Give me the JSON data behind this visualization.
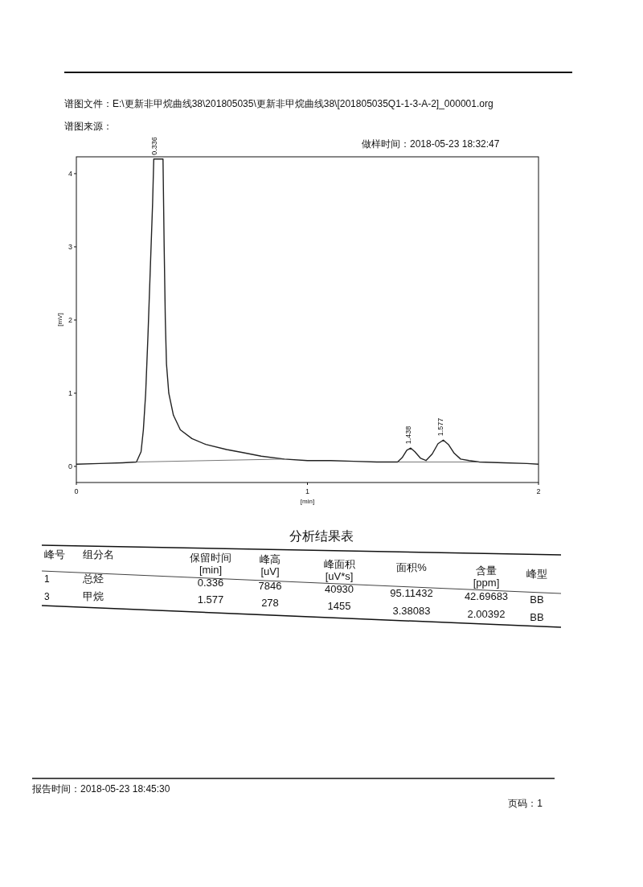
{
  "chart_data": {
    "type": "line",
    "xlabel": "[min]",
    "ylabel": "[mV]",
    "xlim": [
      0,
      2
    ],
    "ylim": [
      -0.22,
      4.23
    ],
    "xticks": [
      0,
      1,
      2
    ],
    "yticks": [
      0,
      1,
      2,
      3,
      4
    ],
    "grid": false,
    "series": [
      {
        "color": "#222222",
        "x": [
          0,
          0.1,
          0.2,
          0.26,
          0.28,
          0.29,
          0.3,
          0.31,
          0.32,
          0.33,
          0.335,
          0.375,
          0.38,
          0.385,
          0.39,
          0.4,
          0.42,
          0.45,
          0.5,
          0.56,
          0.65,
          0.72,
          0.8,
          0.9,
          1.0,
          1.1,
          1.2,
          1.3,
          1.39,
          1.41,
          1.43,
          1.447,
          1.465,
          1.49,
          1.513,
          1.54,
          1.565,
          1.588,
          1.61,
          1.635,
          1.663,
          1.7,
          1.744,
          1.85,
          1.95,
          2.0
        ],
        "values": [
          0.03,
          0.04,
          0.05,
          0.06,
          0.2,
          0.5,
          1.0,
          1.8,
          2.7,
          3.6,
          4.2,
          4.2,
          3.0,
          2.0,
          1.4,
          1.0,
          0.7,
          0.5,
          0.38,
          0.3,
          0.23,
          0.19,
          0.14,
          0.1,
          0.08,
          0.08,
          0.07,
          0.06,
          0.06,
          0.12,
          0.22,
          0.25,
          0.2,
          0.11,
          0.08,
          0.17,
          0.31,
          0.36,
          0.3,
          0.18,
          0.1,
          0.08,
          0.06,
          0.05,
          0.04,
          0.03
        ]
      },
      {
        "color": "#555555",
        "x": [
          0.26,
          0.9
        ],
        "values": [
          0.06,
          0.1
        ]
      },
      {
        "color": "#555555",
        "x": [
          1.39,
          1.744
        ],
        "values": [
          0.06,
          0.06
        ]
      }
    ],
    "annotations": [
      "谱图文件：E:\\更新非甲烷曲线38\\201805035\\更新非甲烷曲线38\\[201805035Q1-1-3-A-2]_000001.org",
      "谱图来源：",
      "做样时间：2018-05-23 18:32:47",
      "分析结果表",
      "峰号",
      "组分名",
      "保留时间\n[min]",
      "峰高\n[uV]",
      "峰面积\n[uV*s]",
      "面积%",
      "含量\n[ppm]",
      "峰型",
      "1",
      "总烃",
      "0.336",
      "7846",
      "40930",
      "95.11432",
      "42.69683",
      "BB",
      "3",
      "甲烷",
      "1.577",
      "278",
      "1455",
      "3.38083",
      "2.00392",
      "BB",
      "报告时间：2018-05-23 18:45:30",
      "页码：1",
      {
        "text": "0.336",
        "x": 0.336,
        "y": 4.2
      },
      {
        "text": "1.438",
        "x": 1.438,
        "y": 0.25
      },
      {
        "text": "1.577",
        "x": 1.577,
        "y": 0.36
      }
    ]
  }
}
